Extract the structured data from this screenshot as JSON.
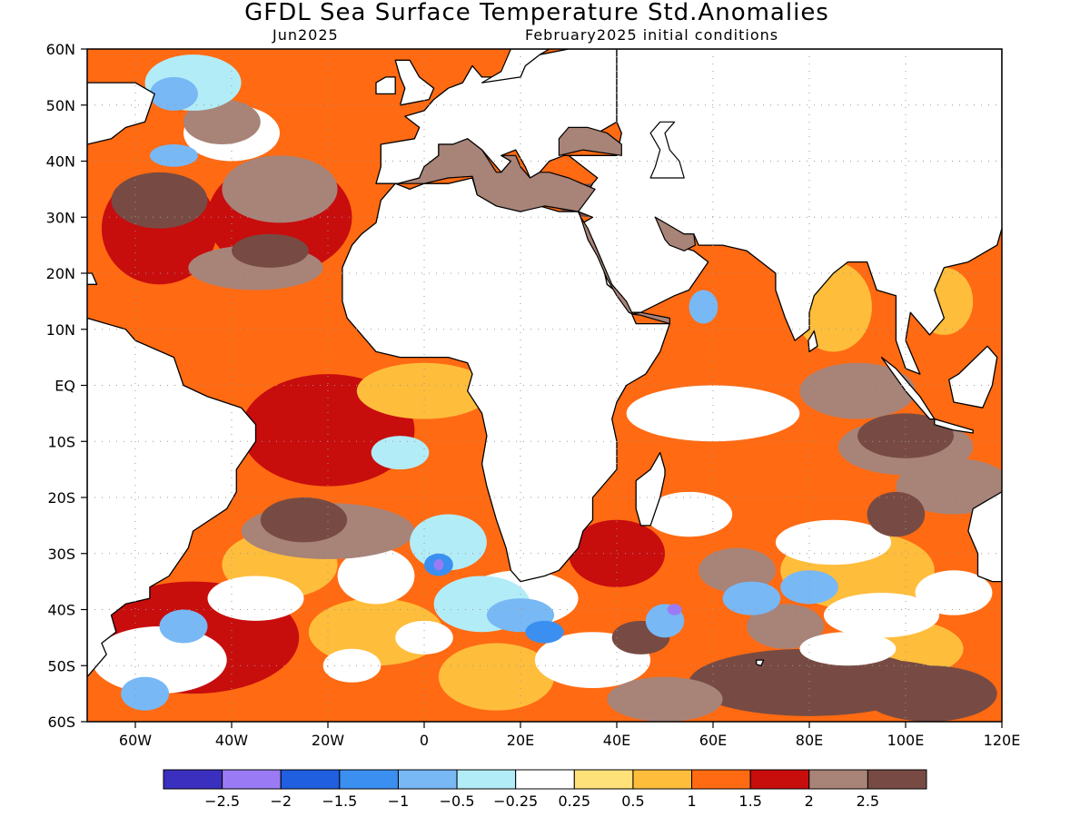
{
  "title": "GFDL Sea Surface Temperature Std.Anomalies",
  "subtitle_left": "Jun2025",
  "subtitle_right": "February2025 initial conditions",
  "axes": {
    "lon_range": [
      -70,
      120
    ],
    "lat_range": [
      -60,
      60
    ],
    "lat_ticks": [
      "60N",
      "50N",
      "40N",
      "30N",
      "20N",
      "10N",
      "EQ",
      "10S",
      "20S",
      "30S",
      "40S",
      "50S",
      "60S"
    ],
    "lon_ticks": [
      "60W",
      "40W",
      "20W",
      "0",
      "20E",
      "40E",
      "60E",
      "80E",
      "100E",
      "120E"
    ],
    "grid": "dotted"
  },
  "colorbar": {
    "colors": [
      "#3a2fbf",
      "#9b7bf5",
      "#1f5fe0",
      "#3b8ff0",
      "#78b8f5",
      "#b2ecf7",
      "#ffffff",
      "#ffe17a",
      "#ffbd3c",
      "#ff6a12",
      "#c80d0d",
      "#a88378",
      "#774b43"
    ],
    "labels": [
      "-2.5",
      "-2",
      "-1.5",
      "-1",
      "-0.5",
      "-0.25",
      "0.25",
      "0.5",
      "1",
      "1.5",
      "2",
      "2.5"
    ]
  }
}
